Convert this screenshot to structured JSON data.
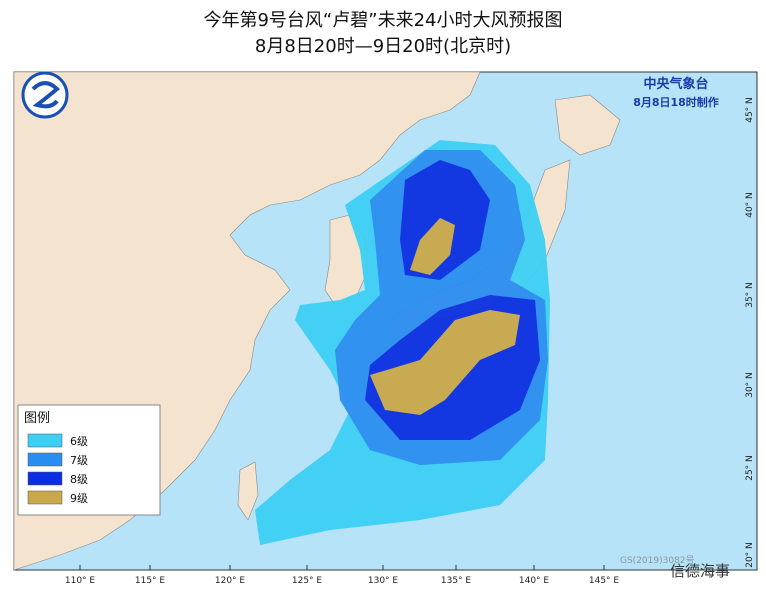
{
  "header": {
    "title": "今年第9号台风“卢碧”未来24小时大风预报图",
    "subtitle": "8月8日20时—9日20时(北京时)"
  },
  "agency": {
    "name": "中央气象台",
    "issued": "8月8日18时制作"
  },
  "legend": {
    "title": "图例",
    "items": [
      {
        "label": "6级",
        "color": "#3dcff4"
      },
      {
        "label": "7级",
        "color": "#2a8ef0"
      },
      {
        "label": "8级",
        "color": "#0b2fe0"
      },
      {
        "label": "9级",
        "color": "#c9a84b"
      }
    ]
  },
  "longitudes": [
    "110° E",
    "115° E",
    "120° E",
    "125° E",
    "130° E",
    "135° E",
    "140° E",
    "145° E"
  ],
  "latitudes": [
    "45° N",
    "40° N",
    "35° N",
    "30° N",
    "25° N",
    "20° N"
  ],
  "map_note": "GS(2019)3082号",
  "watermark": "信德海事"
}
